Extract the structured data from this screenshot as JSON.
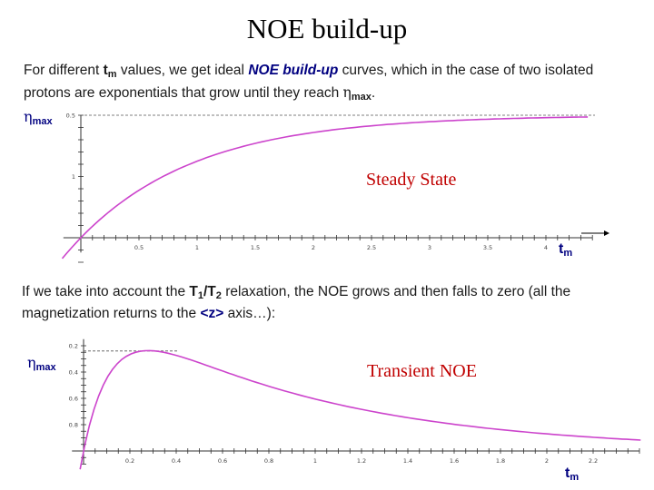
{
  "title": "NOE build-up",
  "intro": {
    "t1": "For different ",
    "tm_base": "t",
    "tm_sub": "m",
    "t2": " values, we get ideal ",
    "emph": "NOE build-up",
    "t3": " curves, which in the case of two isolated protons are exponentials that grow until they reach ",
    "eta": "η",
    "eta_sub": "max",
    "t4": "."
  },
  "second": {
    "t1": "If we take into account the ",
    "T1": "T",
    "T1_sub": "1",
    "slash": "/",
    "T2": "T",
    "T2_sub": "2",
    "t2": " relaxation, the NOE grows and then falls to zero (all the magnetization returns to the ",
    "z": "<z>",
    "t3": " axis…):"
  },
  "plot1": {
    "eta": "η",
    "eta_sub": "max",
    "xlabel_base": "t",
    "xlabel_sub": "m",
    "annotation": "Steady State",
    "x_ticks": [
      "0.5",
      "1",
      "1.5",
      "2",
      "2.5",
      "3",
      "3.5",
      "4"
    ],
    "y_ticks": [
      "1",
      "0.5"
    ]
  },
  "plot2": {
    "eta": "η",
    "eta_sub": "max",
    "xlabel_base": "t",
    "xlabel_sub": "m",
    "annotation": "Transient NOE",
    "x_ticks": [
      "0.2",
      "0.4",
      "0.6",
      "0.8",
      "1",
      "1.2",
      "1.4",
      "1.6",
      "1.8",
      "2",
      "2.2"
    ],
    "y_ticks": [
      "0.8",
      "0.6",
      "0.4",
      "0.2"
    ]
  },
  "colors": {
    "curve": "#cc44cc",
    "axis": "#333333",
    "label_navy": "#000080",
    "annotation_red": "#c00000"
  },
  "chart_data": [
    {
      "type": "line",
      "title": "",
      "xlabel": "tm",
      "ylabel": "ηmax",
      "x_ticks": [
        0.5,
        1,
        1.5,
        2,
        2.5,
        3,
        3.5,
        4
      ],
      "y_ticks": [
        0.5,
        1
      ],
      "xlim": [
        -0.15,
        4.4
      ],
      "ylim": [
        -0.12,
        1.0
      ],
      "series": [
        {
          "x": [
            -0.15,
            0,
            0.25,
            0.5,
            0.75,
            1,
            1.5,
            2,
            2.5,
            3,
            3.5,
            4,
            4.4
          ],
          "y": [
            -0.12,
            0,
            0.22,
            0.39,
            0.53,
            0.63,
            0.78,
            0.86,
            0.92,
            0.95,
            0.97,
            0.98,
            0.99
          ]
        }
      ]
    },
    {
      "type": "line",
      "title": "",
      "xlabel": "tm",
      "ylabel": "ηmax",
      "x_ticks": [
        0.2,
        0.4,
        0.6,
        0.8,
        1,
        1.2,
        1.4,
        1.6,
        1.8,
        2,
        2.2
      ],
      "y_ticks": [
        0.2,
        0.4,
        0.6,
        0.8
      ],
      "xlim": [
        -0.05,
        2.4
      ],
      "ylim": [
        -0.1,
        0.85
      ],
      "series": [
        {
          "x": [
            -0.02,
            0,
            0.1,
            0.2,
            0.3,
            0.4,
            0.5,
            0.6,
            0.8,
            1.0,
            1.2,
            1.4,
            1.6,
            1.8,
            2.0,
            2.2,
            2.4
          ],
          "y": [
            -0.06,
            0,
            0.34,
            0.58,
            0.72,
            0.755,
            0.74,
            0.7,
            0.6,
            0.47,
            0.35,
            0.25,
            0.17,
            0.11,
            0.07,
            0.04,
            0.02
          ]
        }
      ]
    }
  ]
}
